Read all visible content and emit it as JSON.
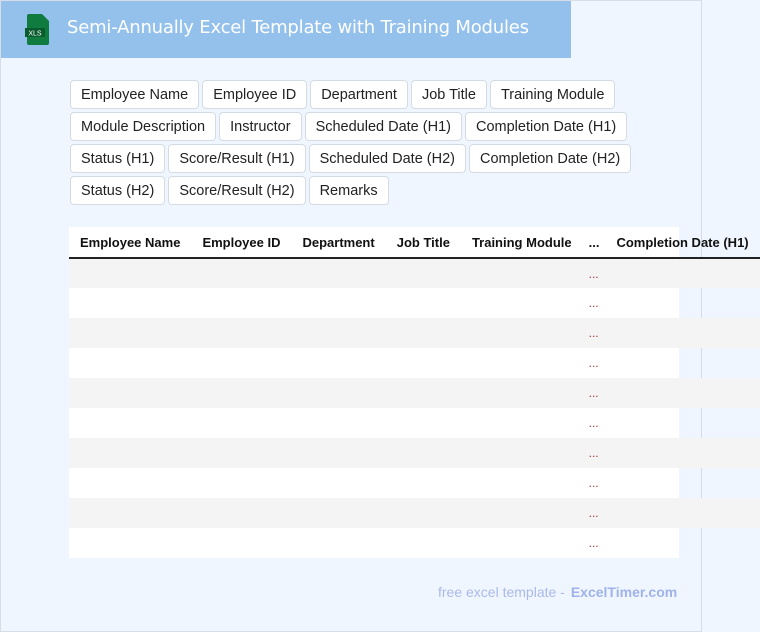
{
  "header": {
    "title": "Semi-Annually Excel Template with Training Modules",
    "icon": "xls-file-icon",
    "icon_label": "XLS"
  },
  "tags": [
    "Employee Name",
    "Employee ID",
    "Department",
    "Job Title",
    "Training Module",
    "Module Description",
    "Instructor",
    "Scheduled Date (H1)",
    "Completion Date (H1)",
    "Status (H1)",
    "Score/Result (H1)",
    "Scheduled Date (H2)",
    "Completion Date (H2)",
    "Status (H2)",
    "Score/Result (H2)",
    "Remarks"
  ],
  "table": {
    "columns": [
      "Employee Name",
      "Employee ID",
      "Department",
      "Job Title",
      "Training Module",
      "...",
      "Completion Date (H1)"
    ],
    "row_count": 10,
    "ellipsis": "..."
  },
  "footer": {
    "text": "free excel template -",
    "brand": "ExcelTimer.com"
  }
}
